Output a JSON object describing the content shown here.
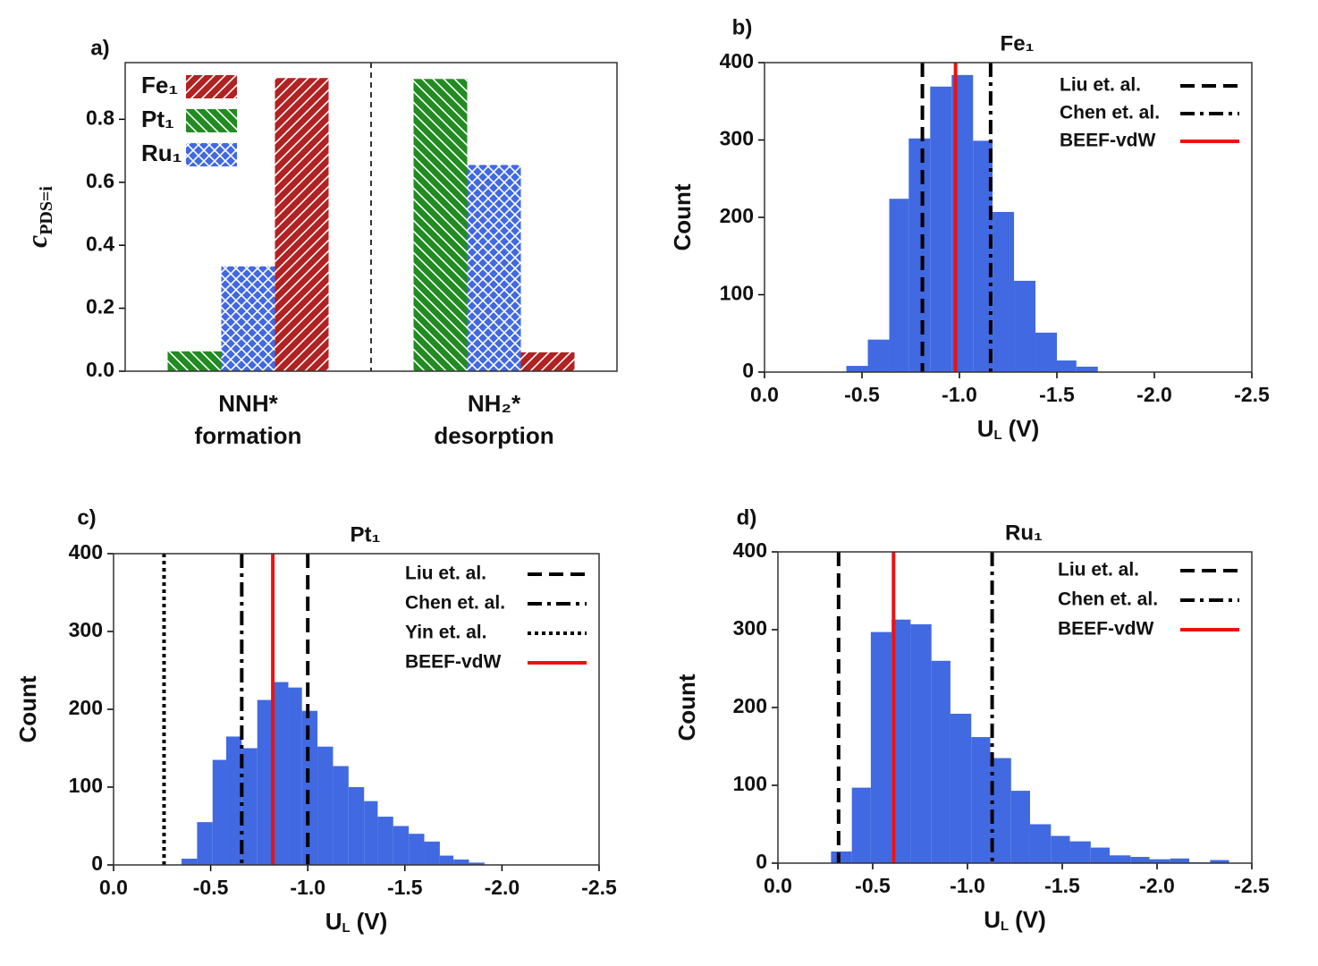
{
  "chart_data": [
    {
      "type": "bar",
      "panel_label": "a)",
      "ylabel": {
        "main": "c",
        "sub": "PDS=i"
      },
      "categories": [
        [
          "NNH*",
          "formation"
        ],
        [
          "NH₂*",
          "desorption"
        ]
      ],
      "series": [
        {
          "name": "Fe₁",
          "color": "#b22222",
          "hatch": "/",
          "values": [
            0.931,
            0.06
          ]
        },
        {
          "name": "Pt₁",
          "color": "#228b22",
          "hatch": "\\",
          "values": [
            0.063,
            0.928
          ]
        },
        {
          "name": "Ru₁",
          "color": "#4169e1",
          "hatch": "x",
          "values": [
            0.333,
            0.655
          ]
        }
      ],
      "ylim": [
        0,
        0.98
      ],
      "yticks": [
        {
          "value": 0,
          "label": "0.0"
        },
        0.2,
        0.4,
        0.6,
        0.8
      ],
      "legend": "upper left",
      "separator": true
    },
    {
      "type": "histogram",
      "panel_label": "b)",
      "title": "Fe₁",
      "bins": [
        -0.42,
        -0.53,
        -0.64,
        -0.74,
        -0.85,
        -0.96,
        -1.07,
        -1.17,
        -1.28,
        -1.39,
        -1.5,
        -1.6,
        -1.71
      ],
      "values": [
        8,
        42,
        224,
        302,
        369,
        384,
        299,
        207,
        118,
        51,
        15,
        7
      ],
      "color": "#4169e1",
      "xlim": [
        0,
        -2.5
      ],
      "xticks": [
        {
          "value": 0,
          "label": "0.0"
        },
        -0.5,
        {
          "value": -1,
          "label": "-1.0"
        },
        -1.5,
        {
          "value": -2,
          "label": "-2.0"
        },
        -2.5
      ],
      "ylim": [
        0,
        400
      ],
      "yticks": [
        0,
        100,
        200,
        300,
        400
      ],
      "xlabel": {
        "main": "U",
        "sub": "L",
        "unit": "(V)"
      },
      "ylabel": "Count",
      "vlines": [
        {
          "name": "Liu et. al.",
          "x": -0.81,
          "style": "dashed",
          "color": "#000000"
        },
        {
          "name": "Chen et. al.",
          "x": -1.16,
          "style": "dashdot",
          "color": "#000000"
        },
        {
          "name": "BEEF-vdW",
          "x": -0.98,
          "style": "solid",
          "color": "#ee1111"
        }
      ],
      "legend": "upper right"
    },
    {
      "type": "histogram",
      "panel_label": "c)",
      "title": "Pt₁",
      "bins": [
        -0.35,
        -0.43,
        -0.51,
        -0.58,
        -0.66,
        -0.74,
        -0.82,
        -0.9,
        -0.97,
        -1.05,
        -1.13,
        -1.21,
        -1.29,
        -1.36,
        -1.44,
        -1.52,
        -1.6,
        -1.68,
        -1.75,
        -1.83,
        -1.91
      ],
      "values": [
        8,
        55,
        135,
        165,
        150,
        212,
        235,
        228,
        198,
        152,
        127,
        100,
        82,
        62,
        50,
        40,
        30,
        12,
        7,
        3
      ],
      "color": "#4169e1",
      "xlim": [
        0,
        -2.5
      ],
      "xticks": [
        {
          "value": 0,
          "label": "0.0"
        },
        -0.5,
        {
          "value": -1,
          "label": "-1.0"
        },
        -1.5,
        {
          "value": -2,
          "label": "-2.0"
        },
        -2.5
      ],
      "ylim": [
        0,
        400
      ],
      "yticks": [
        0,
        100,
        200,
        300,
        400
      ],
      "xlabel": {
        "main": "U",
        "sub": "L",
        "unit": "(V)"
      },
      "ylabel": "Count",
      "vlines": [
        {
          "name": "Liu et. al.",
          "x": -1.0,
          "style": "dashed",
          "color": "#000000"
        },
        {
          "name": "Chen et. al.",
          "x": -0.66,
          "style": "dashdot",
          "color": "#000000"
        },
        {
          "name": "Yin et. al.",
          "x": -0.26,
          "style": "dotted",
          "color": "#000000"
        },
        {
          "name": "BEEF-vdW",
          "x": -0.82,
          "style": "solid",
          "color": "#ee1111"
        }
      ],
      "legend": "upper right"
    },
    {
      "type": "histogram",
      "panel_label": "d)",
      "title": "Ru₁",
      "bins": [
        -0.28,
        -0.39,
        -0.49,
        -0.6,
        -0.7,
        -0.81,
        -0.91,
        -1.02,
        -1.12,
        -1.23,
        -1.33,
        -1.44,
        -1.54,
        -1.65,
        -1.75,
        -1.86,
        -1.96,
        -2.07,
        -2.17,
        -2.28,
        -2.38
      ],
      "values": [
        15,
        97,
        297,
        313,
        307,
        260,
        192,
        162,
        135,
        93,
        50,
        35,
        28,
        20,
        10,
        8,
        5,
        6,
        1,
        4
      ],
      "color": "#4169e1",
      "xlim": [
        0,
        -2.5
      ],
      "xticks": [
        {
          "value": 0,
          "label": "0.0"
        },
        -0.5,
        {
          "value": -1,
          "label": "-1.0"
        },
        -1.5,
        {
          "value": -2,
          "label": "-2.0"
        },
        -2.5
      ],
      "ylim": [
        0,
        400
      ],
      "yticks": [
        0,
        100,
        200,
        300,
        400
      ],
      "xlabel": {
        "main": "U",
        "sub": "L",
        "unit": "(V)"
      },
      "ylabel": "Count",
      "vlines": [
        {
          "name": "Liu et. al.",
          "x": -0.32,
          "style": "dashed",
          "color": "#000000"
        },
        {
          "name": "Chen et. al.",
          "x": -1.13,
          "style": "dashdot",
          "color": "#000000"
        },
        {
          "name": "BEEF-vdW",
          "x": -0.61,
          "style": "solid",
          "color": "#ee1111"
        }
      ],
      "legend": "upper right"
    }
  ]
}
